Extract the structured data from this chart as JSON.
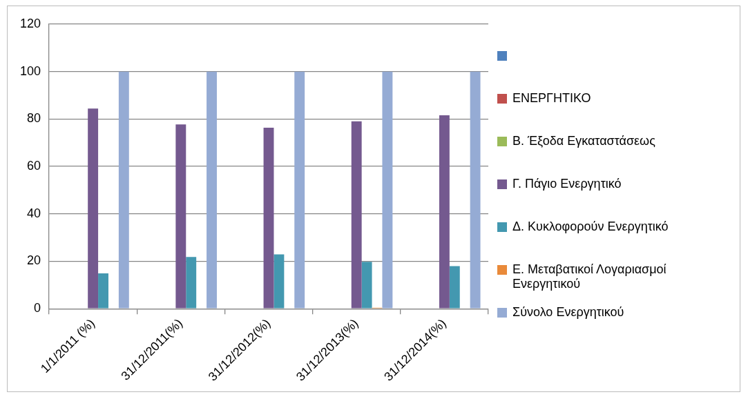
{
  "chart_data": {
    "type": "bar",
    "categories": [
      "1/1/2011 (%)",
      "31/12/2011(%)",
      "31/12/2012(%)",
      "31/12/2013(%)",
      "31/12/2014(%)"
    ],
    "series": [
      {
        "color": "#4f81bd",
        "values": [
          0,
          0,
          0,
          0,
          0
        ]
      },
      {
        "name": "ΕΝΕΡΓΗΤΙΚΟ",
        "color": "#c0504d",
        "values": [
          0,
          0,
          0,
          0,
          0
        ]
      },
      {
        "name": "Β. Έξοδα Εγκαταστάσεως",
        "color": "#9bbb59",
        "values": [
          0,
          0,
          0,
          0,
          0
        ]
      },
      {
        "name": "Γ. Πάγιο Ενεργητικό",
        "color": "#74598f",
        "values": [
          84.4,
          77.7,
          76.3,
          79,
          81.6
        ]
      },
      {
        "name": "Δ. Κυκλοφορούν Ενεργητικό",
        "color": "#4398b0",
        "values": [
          14.9,
          21.8,
          22.9,
          19.8,
          18
        ]
      },
      {
        "name": "Ε. Μεταβατικοί Λογαριασμοί Ενεργητικού",
        "color": "#e98a3a",
        "values": [
          0,
          0,
          0,
          0.4,
          0
        ]
      },
      {
        "name": "Σύνολο Ενεργητικού",
        "color": "#95abd4",
        "values": [
          100,
          100,
          100,
          100,
          100
        ]
      }
    ],
    "ylim": [
      0,
      120
    ],
    "yticks": [
      0,
      20,
      40,
      60,
      80,
      100,
      120
    ],
    "grid": "y",
    "legend": "right"
  }
}
